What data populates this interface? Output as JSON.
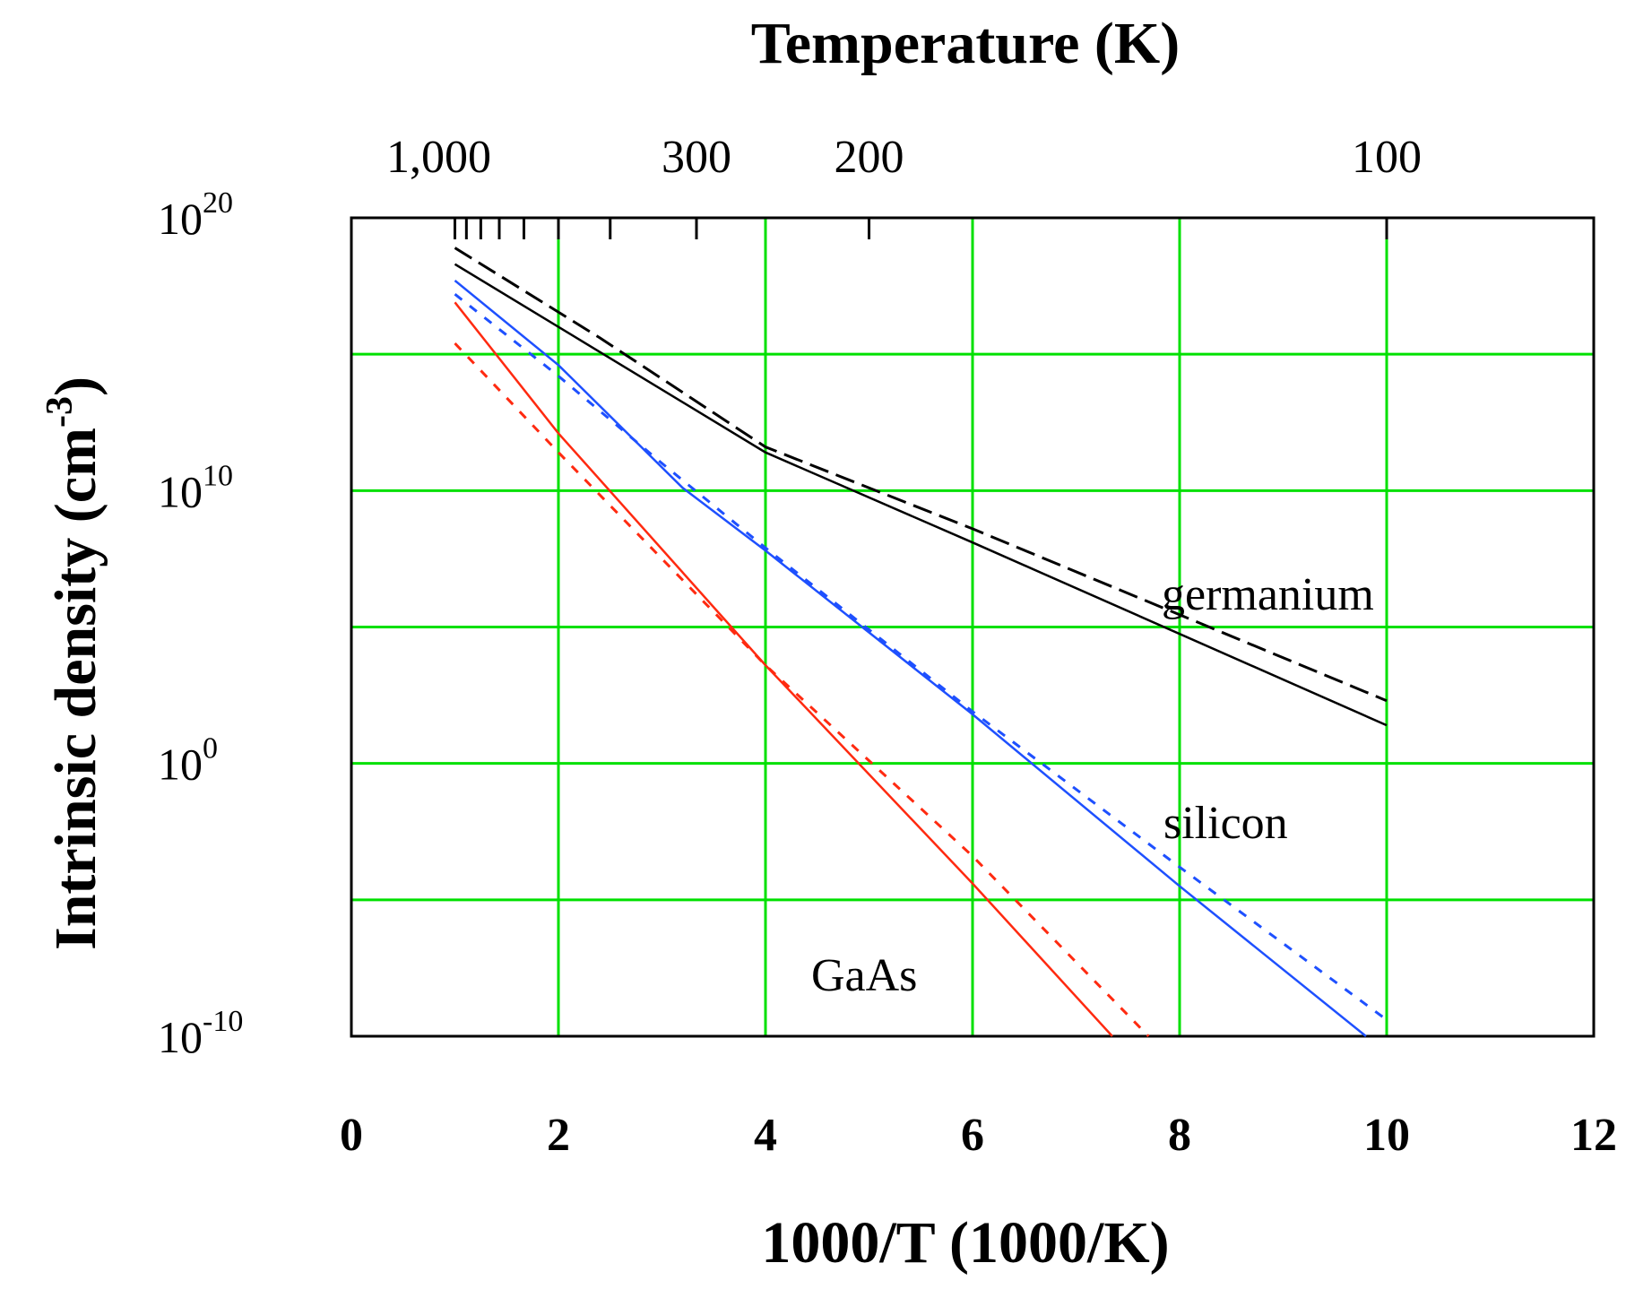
{
  "chart_data": {
    "type": "line",
    "title": "Temperature (K)",
    "xlabel": "1000/T (1000/K)",
    "ylabel": "Intrinsic density (cm-3)",
    "xlim": [
      0,
      12
    ],
    "ylim_log10": [
      -10,
      20
    ],
    "yscale": "log",
    "grid": true,
    "grid_color": "#00e000",
    "x_ticks": [
      "0",
      "2",
      "4",
      "6",
      "8",
      "10",
      "12"
    ],
    "y_ticks": [
      {
        "base": "10",
        "exp": "20"
      },
      {
        "base": "10",
        "exp": "10"
      },
      {
        "base": "10",
        "exp": "0"
      },
      {
        "base": "10",
        "exp": "-10"
      }
    ],
    "top_axis": {
      "label": "Temperature (K)",
      "ticks": [
        {
          "label": "1,000",
          "temperature": 1000
        },
        {
          "label": "300",
          "temperature": 300
        },
        {
          "label": "200",
          "temperature": 200
        },
        {
          "label": "100",
          "temperature": 100
        }
      ]
    },
    "series": [
      {
        "name": "germanium",
        "style": "solid",
        "color": "#000000",
        "x": [
          1,
          4,
          6,
          10
        ],
        "log10_y": [
          18.3,
          11.4,
          8.1,
          1.4
        ]
      },
      {
        "name": "germanium",
        "style": "dashed",
        "color": "#000000",
        "x": [
          1,
          2.4,
          4,
          6,
          10
        ],
        "log10_y": [
          18.9,
          15.6,
          11.6,
          8.6,
          2.3
        ]
      },
      {
        "name": "silicon",
        "style": "solid",
        "color": "#1e50ff",
        "x": [
          1,
          2,
          3.2,
          4,
          6,
          8,
          9.8
        ],
        "log10_y": [
          17.7,
          14.6,
          10.1,
          7.8,
          1.8,
          -4.5,
          -10
        ]
      },
      {
        "name": "silicon",
        "style": "dotted",
        "color": "#1e50ff",
        "x": [
          1,
          2,
          3,
          4,
          6,
          8,
          10
        ],
        "log10_y": [
          17.2,
          14.2,
          11.0,
          7.9,
          1.9,
          -3.8,
          -9.4
        ]
      },
      {
        "name": "GaAs",
        "style": "solid",
        "color": "#ff2a10",
        "x": [
          1,
          2,
          4,
          6,
          7.35
        ],
        "log10_y": [
          16.9,
          12.1,
          3.6,
          -4.4,
          -10
        ]
      },
      {
        "name": "GaAs",
        "style": "dotted",
        "color": "#ff2a10",
        "x": [
          1,
          2,
          4,
          6,
          7.7
        ],
        "log10_y": [
          15.4,
          11.4,
          3.6,
          -3.4,
          -10
        ]
      }
    ],
    "annotations": [
      "germanium",
      "silicon",
      "GaAs"
    ]
  }
}
